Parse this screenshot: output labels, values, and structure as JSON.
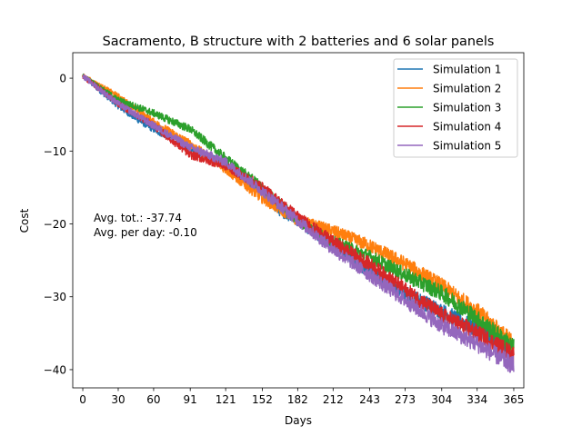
{
  "chart_data": {
    "type": "line",
    "title": "Sacramento, B structure with 2 batteries and 6 solar panels",
    "xlabel": "Days",
    "ylabel": "Cost",
    "xlim": [
      -8.5,
      373.5
    ],
    "ylim": [
      -42.5,
      3.5
    ],
    "x_ticks": [
      0,
      30,
      60,
      91,
      121,
      152,
      182,
      212,
      243,
      273,
      304,
      334,
      365
    ],
    "y_ticks": [
      0,
      -10,
      -20,
      -30,
      -40
    ],
    "y_tick_labels": [
      "0",
      "−10",
      "−20",
      "−30",
      "−40"
    ],
    "legend_position": "top-right",
    "grid": false,
    "annotations": [
      "Avg. tot.: -37.74",
      "Avg. per day: -0.10"
    ],
    "series": [
      {
        "name": "Simulation 1",
        "color": "#1f77b4",
        "x": [
          0,
          30,
          45,
          60,
          91,
          121,
          152,
          165,
          182,
          212,
          243,
          273,
          304,
          334,
          365
        ],
        "y": [
          0.3,
          -3.8,
          -5.5,
          -7.0,
          -9.5,
          -12.0,
          -15.5,
          -18.0,
          -19.5,
          -23.0,
          -26.5,
          -29.5,
          -32.0,
          -34.5,
          -37.0
        ]
      },
      {
        "name": "Simulation 2",
        "color": "#ff7f0e",
        "x": [
          0,
          30,
          60,
          91,
          121,
          152,
          182,
          212,
          243,
          273,
          304,
          334,
          365
        ],
        "y": [
          0.3,
          -2.5,
          -6.0,
          -9.0,
          -12.5,
          -16.5,
          -19.5,
          -21.0,
          -23.0,
          -25.5,
          -28.5,
          -32.0,
          -36.5
        ]
      },
      {
        "name": "Simulation 3",
        "color": "#2ca02c",
        "x": [
          0,
          30,
          60,
          91,
          121,
          152,
          182,
          212,
          243,
          273,
          304,
          334,
          365
        ],
        "y": [
          0.3,
          -3.0,
          -4.8,
          -7.0,
          -11.0,
          -15.0,
          -19.5,
          -22.5,
          -24.5,
          -27.0,
          -29.5,
          -33.0,
          -37.0
        ]
      },
      {
        "name": "Simulation 4",
        "color": "#d62728",
        "x": [
          0,
          30,
          60,
          91,
          121,
          152,
          182,
          212,
          243,
          273,
          304,
          334,
          365
        ],
        "y": [
          0.3,
          -3.5,
          -6.5,
          -10.5,
          -12.0,
          -15.0,
          -19.0,
          -22.5,
          -25.5,
          -29.0,
          -32.5,
          -35.0,
          -38.0
        ]
      },
      {
        "name": "Simulation 5",
        "color": "#9467bd",
        "x": [
          0,
          30,
          60,
          91,
          121,
          152,
          182,
          212,
          243,
          273,
          304,
          334,
          365
        ],
        "y": [
          0.3,
          -3.5,
          -6.5,
          -9.5,
          -11.5,
          -15.5,
          -19.5,
          -23.5,
          -27.0,
          -30.5,
          -34.0,
          -36.5,
          -39.5
        ]
      }
    ]
  }
}
